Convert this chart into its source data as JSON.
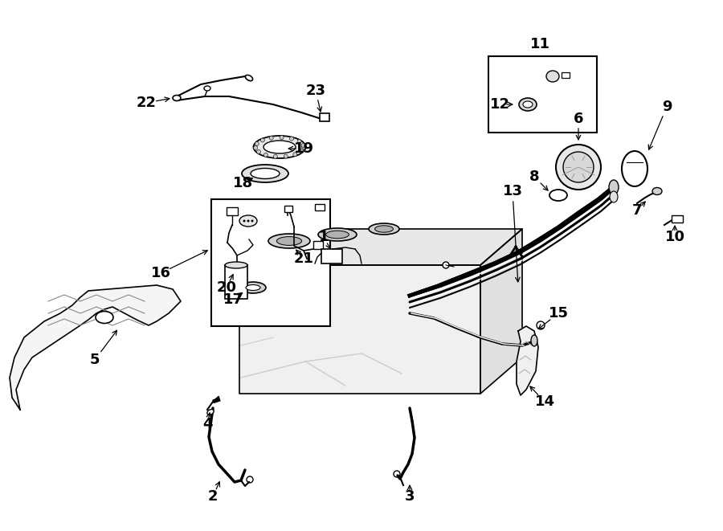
{
  "bg_color": "#ffffff",
  "lc": "#000000",
  "lw": 1.2,
  "figsize": [
    9.0,
    6.61
  ],
  "dpi": 100,
  "label_fs": 13
}
